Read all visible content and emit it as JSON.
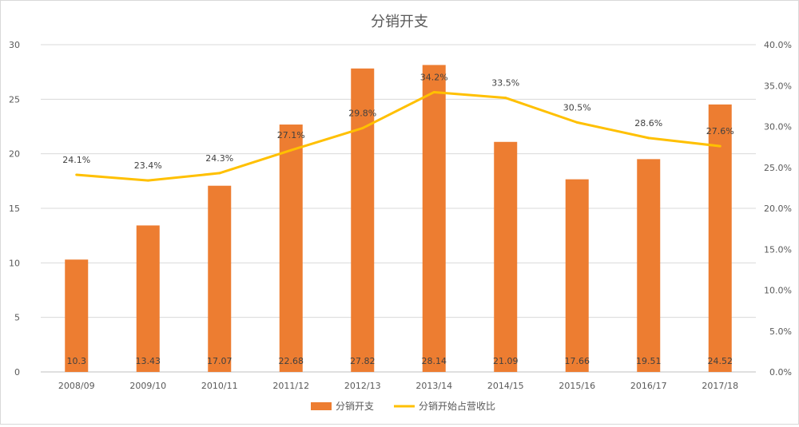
{
  "chart_data": {
    "type": "bar+line",
    "title": "分销开支",
    "categories": [
      "2008/09",
      "2009/10",
      "2010/11",
      "2011/12",
      "2012/13",
      "2013/14",
      "2014/15",
      "2015/16",
      "2016/17",
      "2017/18"
    ],
    "series": [
      {
        "name": "分销开支",
        "type": "bar",
        "axis": "left",
        "color": "#ED7D31",
        "values": [
          10.3,
          13.43,
          17.07,
          22.68,
          27.82,
          28.14,
          21.09,
          17.66,
          19.51,
          24.52
        ],
        "labels": [
          "10.3",
          "13.43",
          "17.07",
          "22.68",
          "27.82",
          "28.14",
          "21.09",
          "17.66",
          "19.51",
          "24.52"
        ]
      },
      {
        "name": "分销开始占营收比",
        "type": "line",
        "axis": "right",
        "color": "#FFC000",
        "values": [
          24.1,
          23.4,
          24.3,
          27.1,
          29.8,
          34.2,
          33.5,
          30.5,
          28.6,
          27.6
        ],
        "labels": [
          "24.1%",
          "23.4%",
          "24.3%",
          "27.1%",
          "29.8%",
          "34.2%",
          "33.5%",
          "30.5%",
          "28.6%",
          "27.6%"
        ]
      }
    ],
    "y_left": {
      "min": 0,
      "max": 30,
      "ticks": [
        "0",
        "5",
        "10",
        "15",
        "20",
        "25",
        "30"
      ]
    },
    "y_right": {
      "min": 0,
      "max": 40,
      "ticks": [
        "0.0%",
        "5.0%",
        "10.0%",
        "15.0%",
        "20.0%",
        "25.0%",
        "30.0%",
        "35.0%",
        "40.0%"
      ]
    },
    "grid": true,
    "legend": "bottom-center"
  }
}
